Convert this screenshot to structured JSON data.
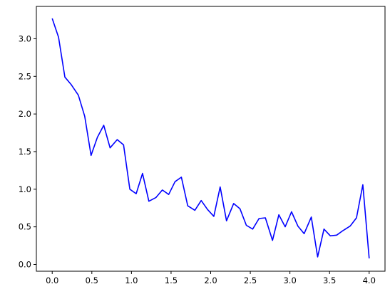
{
  "chart_data": {
    "type": "line",
    "title": "",
    "xlabel": "",
    "ylabel": "",
    "xlim": [
      -0.2,
      4.2
    ],
    "ylim": [
      -0.09,
      3.43
    ],
    "grid": false,
    "xticks": [
      0.0,
      0.5,
      1.0,
      1.5,
      2.0,
      2.5,
      3.0,
      3.5,
      4.0
    ],
    "xtick_labels": [
      "0.0",
      "0.5",
      "1.0",
      "1.5",
      "2.0",
      "2.5",
      "3.0",
      "3.5",
      "4.0"
    ],
    "yticks": [
      0.0,
      0.5,
      1.0,
      1.5,
      2.0,
      2.5,
      3.0
    ],
    "ytick_labels": [
      "0.0",
      "0.5",
      "1.0",
      "1.5",
      "2.0",
      "2.5",
      "3.0"
    ],
    "colors": {
      "line": "#0000ff",
      "axes": "#000000"
    },
    "series": [
      {
        "x": [
          0.0,
          0.08,
          0.16,
          0.24,
          0.33,
          0.41,
          0.49,
          0.57,
          0.65,
          0.73,
          0.82,
          0.9,
          0.98,
          1.06,
          1.14,
          1.22,
          1.31,
          1.39,
          1.47,
          1.55,
          1.63,
          1.71,
          1.8,
          1.88,
          1.96,
          2.04,
          2.12,
          2.2,
          2.29,
          2.37,
          2.45,
          2.53,
          2.61,
          2.69,
          2.78,
          2.86,
          2.94,
          3.02,
          3.1,
          3.18,
          3.27,
          3.35,
          3.43,
          3.51,
          3.59,
          3.67,
          3.76,
          3.84,
          3.92,
          4.0
        ],
        "y": [
          3.27,
          3.02,
          2.49,
          2.39,
          2.25,
          1.97,
          1.45,
          1.69,
          1.85,
          1.55,
          1.66,
          1.59,
          1.0,
          0.94,
          1.21,
          0.84,
          0.89,
          0.99,
          0.93,
          1.1,
          1.16,
          0.78,
          0.72,
          0.85,
          0.73,
          0.64,
          1.03,
          0.58,
          0.81,
          0.74,
          0.52,
          0.47,
          0.61,
          0.62,
          0.32,
          0.66,
          0.5,
          0.7,
          0.51,
          0.41,
          0.63,
          0.1,
          0.47,
          0.38,
          0.39,
          0.45,
          0.51,
          0.62,
          1.06,
          0.08
        ]
      }
    ]
  }
}
